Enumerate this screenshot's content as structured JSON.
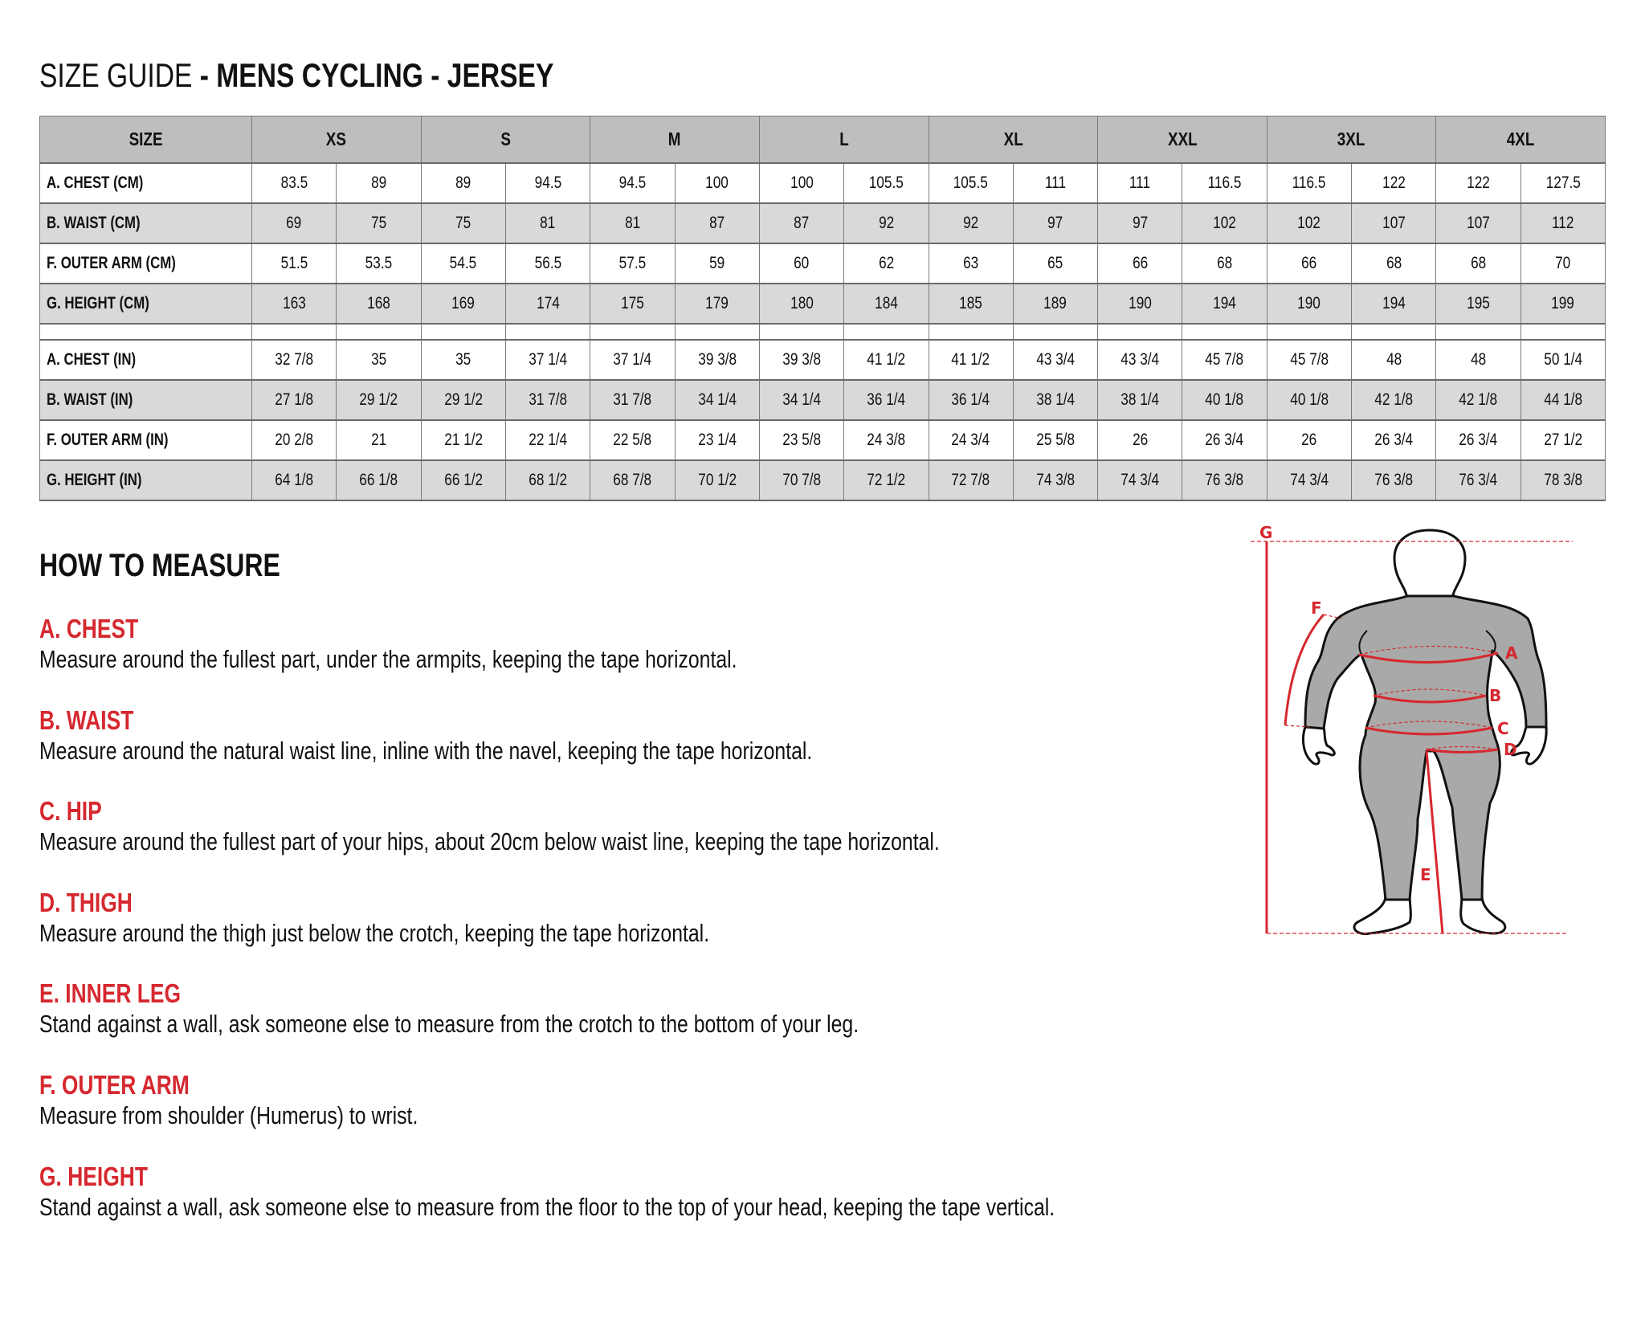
{
  "title": {
    "light": "SIZE GUIDE",
    "bold": " - MENS CYCLING - JERSEY"
  },
  "table": {
    "size_header": "SIZE",
    "sizes": [
      "XS",
      "S",
      "M",
      "L",
      "XL",
      "XXL",
      "3XL",
      "4XL"
    ],
    "cm_rows": [
      {
        "label": "A. CHEST (CM)",
        "values": [
          "83.5",
          "89",
          "89",
          "94.5",
          "94.5",
          "100",
          "100",
          "105.5",
          "105.5",
          "111",
          "111",
          "116.5",
          "116.5",
          "122",
          "122",
          "127.5"
        ]
      },
      {
        "label": "B. WAIST (CM)",
        "values": [
          "69",
          "75",
          "75",
          "81",
          "81",
          "87",
          "87",
          "92",
          "92",
          "97",
          "97",
          "102",
          "102",
          "107",
          "107",
          "112"
        ]
      },
      {
        "label": "F. OUTER ARM (CM)",
        "values": [
          "51.5",
          "53.5",
          "54.5",
          "56.5",
          "57.5",
          "59",
          "60",
          "62",
          "63",
          "65",
          "66",
          "68",
          "66",
          "68",
          "68",
          "70"
        ]
      },
      {
        "label": "G. HEIGHT (CM)",
        "values": [
          "163",
          "168",
          "169",
          "174",
          "175",
          "179",
          "180",
          "184",
          "185",
          "189",
          "190",
          "194",
          "190",
          "194",
          "195",
          "199"
        ]
      }
    ],
    "in_rows": [
      {
        "label": "A. CHEST (IN)",
        "values": [
          "32 7/8",
          "35",
          "35",
          "37 1/4",
          "37 1/4",
          "39 3/8",
          "39 3/8",
          "41 1/2",
          "41 1/2",
          "43 3/4",
          "43 3/4",
          "45 7/8",
          "45 7/8",
          "48",
          "48",
          "50 1/4"
        ]
      },
      {
        "label": "B. WAIST (IN)",
        "values": [
          "27 1/8",
          "29 1/2",
          "29 1/2",
          "31 7/8",
          "31 7/8",
          "34 1/4",
          "34 1/4",
          "36 1/4",
          "36 1/4",
          "38 1/4",
          "38 1/4",
          "40 1/8",
          "40 1/8",
          "42 1/8",
          "42 1/8",
          "44 1/8"
        ]
      },
      {
        "label": "F. OUTER ARM (IN)",
        "values": [
          "20 2/8",
          "21",
          "21 1/2",
          "22 1/4",
          "22 5/8",
          "23 1/4",
          "23 5/8",
          "24 3/8",
          "24 3/4",
          "25 5/8",
          "26",
          "26 3/4",
          "26",
          "26 3/4",
          "26 3/4",
          "27 1/2"
        ]
      },
      {
        "label": "G. HEIGHT (IN)",
        "values": [
          "64 1/8",
          "66 1/8",
          "66 1/2",
          "68 1/2",
          "68 7/8",
          "70 1/2",
          "70 7/8",
          "72 1/2",
          "72 7/8",
          "74 3/8",
          "74 3/4",
          "76 3/8",
          "74 3/4",
          "76 3/8",
          "76 3/4",
          "78 3/8"
        ]
      }
    ]
  },
  "how_to": {
    "heading": "HOW TO MEASURE",
    "items": [
      {
        "title": "A. CHEST",
        "text": "Measure around the fullest part, under the armpits, keeping the tape horizontal."
      },
      {
        "title": "B. WAIST",
        "text": "Measure around the natural waist line, inline with the navel, keeping the tape horizontal."
      },
      {
        "title": "C. HIP",
        "text": "Measure around the fullest part of your hips, about 20cm below waist line, keeping the tape horizontal."
      },
      {
        "title": "D. THIGH",
        "text": "Measure around the thigh just below the crotch, keeping the tape horizontal."
      },
      {
        "title": "E. INNER LEG",
        "text": "Stand against a wall, ask someone else to measure from the crotch to the bottom of your leg."
      },
      {
        "title": "F. OUTER ARM",
        "text": "Measure from shoulder (Humerus) to wrist."
      },
      {
        "title": "G. HEIGHT",
        "text": "Stand against a wall, ask someone else to measure from the floor to the top of your head, keeping the tape vertical."
      }
    ]
  },
  "figure": {
    "labels": {
      "a": "A",
      "b": "B",
      "c": "C",
      "d": "D",
      "e": "E",
      "f": "F",
      "g": "G"
    },
    "colors": {
      "accent": "#d6282f",
      "suit": "#a9a9a9",
      "outline": "#111111"
    }
  }
}
